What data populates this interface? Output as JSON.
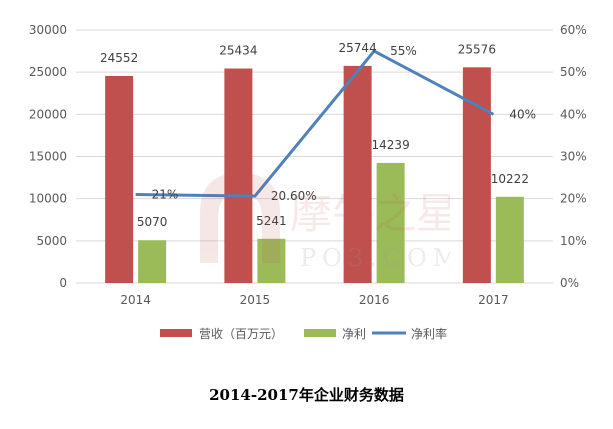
{
  "chart_data": {
    "type": "bar+line",
    "title": "2014-2017年企业财务数据",
    "categories": [
      "2014",
      "2015",
      "2016",
      "2017"
    ],
    "series": [
      {
        "name": "营收（百万元）",
        "type": "bar",
        "axis": "left",
        "color": "#C0504D",
        "values": [
          24552,
          25434,
          25744,
          25576
        ],
        "labels": [
          "24552",
          "25434",
          "25744",
          "25576"
        ]
      },
      {
        "name": "净利",
        "type": "bar",
        "axis": "left",
        "color": "#9BBB59",
        "values": [
          5070,
          5241,
          14239,
          10222
        ],
        "labels": [
          "5070",
          "5241",
          "14239",
          "10222"
        ]
      },
      {
        "name": "净利率",
        "type": "line",
        "axis": "right",
        "color": "#4F81BD",
        "values": [
          21,
          20.6,
          55,
          40
        ],
        "labels": [
          "21%",
          "20.60%",
          "55%",
          "40%"
        ]
      }
    ],
    "left_axis": {
      "ticks": [
        "0",
        "5000",
        "10000",
        "15000",
        "20000",
        "25000",
        "30000"
      ],
      "ylim": [
        0,
        30000
      ]
    },
    "right_axis": {
      "ticks": [
        "0%",
        "10%",
        "20%",
        "30%",
        "40%",
        "50%",
        "60%"
      ],
      "ylim": [
        0,
        60
      ]
    },
    "grid": true,
    "legend_position": "bottom",
    "xlabel": "",
    "ylabel": ""
  },
  "legend": {
    "revenue": "营收（百万元）",
    "net_profit": "净利",
    "net_margin": "净利率"
  },
  "watermark": {
    "text": "摩牛之星",
    "sub": "PO3.COM"
  },
  "caption": "2014-2017年企业财务数据"
}
